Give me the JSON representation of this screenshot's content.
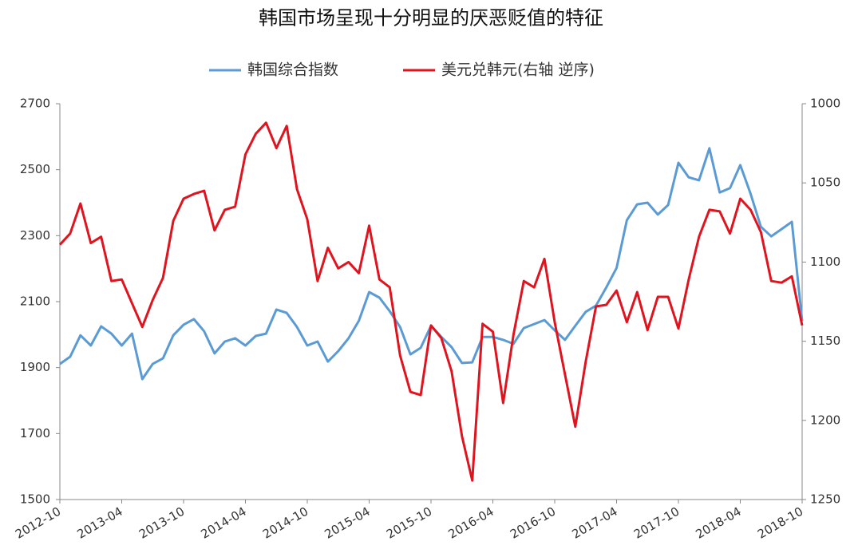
{
  "chart_data": {
    "type": "line",
    "title": "韩国市场呈现十分明显的厌恶贬值的特征",
    "categories": [
      "2012-10",
      null,
      null,
      null,
      null,
      null,
      "2013-04",
      null,
      null,
      null,
      null,
      null,
      "2013-10",
      null,
      null,
      null,
      null,
      null,
      "2014-04",
      null,
      null,
      null,
      null,
      null,
      "2014-10",
      null,
      null,
      null,
      null,
      null,
      "2015-04",
      null,
      null,
      null,
      null,
      null,
      "2015-10",
      null,
      null,
      null,
      null,
      null,
      "2016-04",
      null,
      null,
      null,
      null,
      null,
      "2016-10",
      null,
      null,
      null,
      null,
      null,
      "2017-04",
      null,
      null,
      null,
      null,
      null,
      "2017-10",
      null,
      null,
      null,
      null,
      null,
      "2018-04",
      null,
      null,
      null,
      null,
      null,
      "2018-10"
    ],
    "series": [
      {
        "name": "韩国综合指数",
        "color": "#5b9bd5",
        "values": [
          1911,
          1933,
          1998,
          1967,
          2025,
          2003,
          1967,
          2003,
          1865,
          1911,
          1928,
          1998,
          2030,
          2047,
          2010,
          1943,
          1979,
          1989,
          1967,
          1996,
          2003,
          2076,
          2066,
          2023,
          1967,
          1979,
          1918,
          1950,
          1989,
          2042,
          2129,
          2112,
          2071,
          2023,
          1940,
          1960,
          2027,
          1993,
          1962,
          1914,
          1916,
          1993,
          1993,
          1984,
          1972,
          2020,
          2032,
          2044,
          2013,
          1984,
          2027,
          2069,
          2088,
          2143,
          2202,
          2347,
          2395,
          2400,
          2364,
          2393,
          2521,
          2477,
          2468,
          2565,
          2431,
          2444,
          2514,
          2427,
          2327,
          2298,
          2320,
          2342,
          2041
        ]
      },
      {
        "name": "美元兑韩元(右轴 逆序)",
        "color": "#e0141e",
        "axis": "y2",
        "values": [
          1089,
          1082,
          1063,
          1088,
          1084,
          1112,
          1111,
          1126,
          1141,
          1124,
          1110,
          1074,
          1060,
          1057,
          1055,
          1080,
          1067,
          1065,
          1032,
          1019,
          1012,
          1028,
          1014,
          1054,
          1073,
          1112,
          1091,
          1104,
          1100,
          1107,
          1077,
          1111,
          1116,
          1159,
          1182,
          1184,
          1140,
          1148,
          1169,
          1210,
          1238,
          1139,
          1144,
          1189,
          1146,
          1112,
          1116,
          1098,
          1138,
          1171,
          1204,
          1163,
          1128,
          1127,
          1118,
          1138,
          1119,
          1143,
          1122,
          1122,
          1142,
          1111,
          1084,
          1067,
          1068,
          1082,
          1060,
          1067,
          1081,
          1112,
          1113,
          1109,
          1140
        ]
      }
    ],
    "ylim": [
      1500,
      2700
    ],
    "yticks": [
      1500,
      1700,
      1900,
      2100,
      2300,
      2500,
      2700
    ],
    "y2lim": [
      1250,
      1000
    ],
    "y2ticks": [
      1000,
      1050,
      1100,
      1150,
      1200,
      1250
    ],
    "grid": false,
    "legend": "top"
  }
}
